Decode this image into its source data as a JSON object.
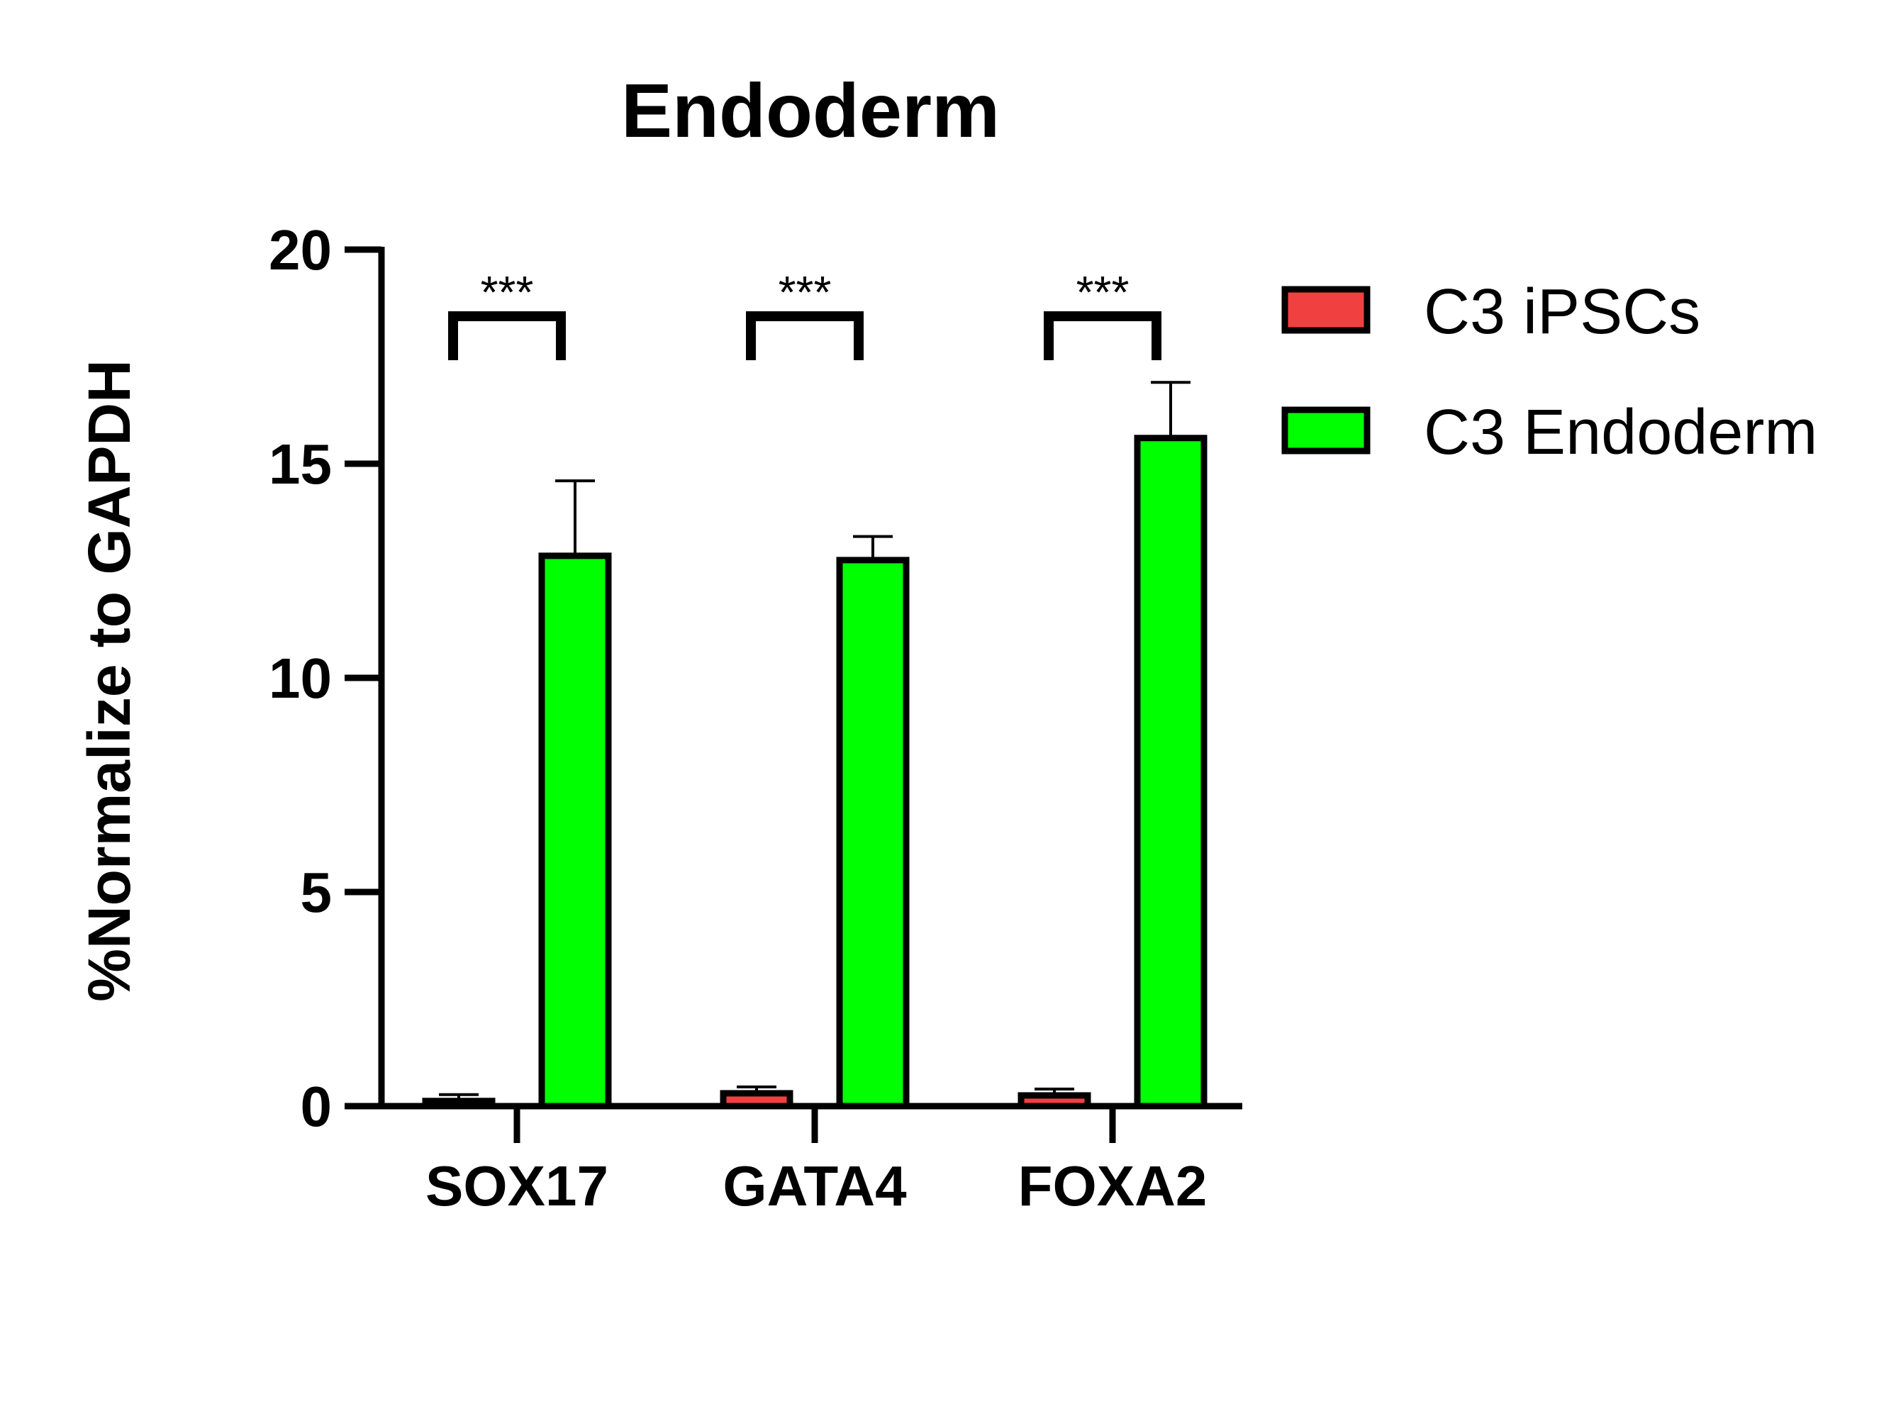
{
  "chart_data": {
    "type": "bar",
    "title": "Endoderm",
    "xlabel": "",
    "ylabel": "%Normalize to GAPDH",
    "ylim": [
      0,
      20
    ],
    "yticks": [
      0,
      5,
      10,
      15,
      20
    ],
    "categories": [
      "SOX17",
      "GATA4",
      "FOXA2"
    ],
    "series": [
      {
        "name": "C3 iPSCs",
        "color": "#f04040",
        "values": [
          0.12,
          0.3,
          0.25
        ],
        "errors": [
          0.15,
          0.15,
          0.15
        ]
      },
      {
        "name": "C3 Endoderm",
        "color": "#00ff00",
        "values": [
          12.85,
          12.75,
          15.6
        ],
        "errors": [
          1.75,
          0.55,
          1.3
        ]
      }
    ],
    "significance": [
      "***",
      "***",
      "***"
    ],
    "legend_position": "top-right",
    "grid": false
  }
}
